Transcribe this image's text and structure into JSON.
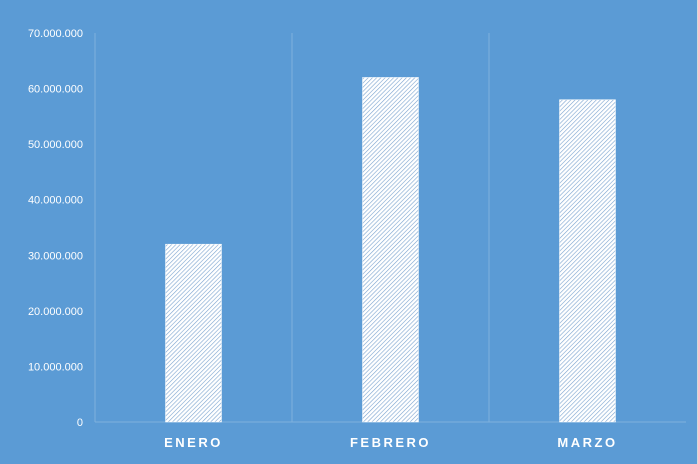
{
  "chart_data": {
    "type": "bar",
    "title": "",
    "xlabel": "",
    "ylabel": "",
    "categories": [
      "ENERO",
      "FEBRERO",
      "MARZO"
    ],
    "values": [
      32000000,
      62000000,
      58000000
    ],
    "ylim": [
      0,
      70000000
    ],
    "yticks": [
      0,
      10000000,
      20000000,
      30000000,
      40000000,
      50000000,
      60000000,
      70000000
    ],
    "ytick_labels": [
      "0",
      "10.000.000",
      "20.000.000",
      "30.000.000",
      "40.000.000",
      "50.000.000",
      "60.000.000",
      "70.000.000"
    ],
    "grid": "vertical separators between categories",
    "legend": "none",
    "bar_fill": "white diagonal hatch pattern",
    "colors": {
      "background": "#5b9bd5",
      "bar_pattern_bg": "#ffffff",
      "bar_pattern_line": "#8aaed4",
      "axis_text": "#ffffff",
      "grid": "#7fb1dd"
    }
  }
}
